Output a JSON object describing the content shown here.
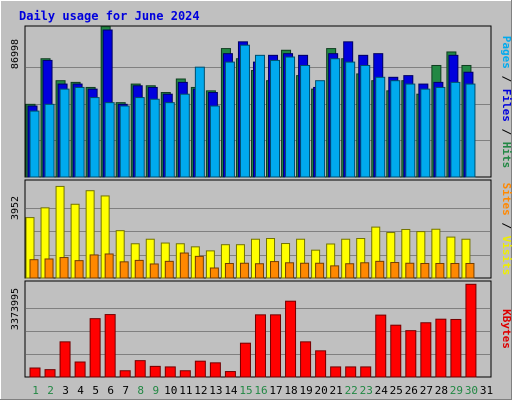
{
  "chart_data": {
    "type": "bar",
    "title": "Daily usage for June 2024",
    "categories": [
      "1",
      "2",
      "3",
      "4",
      "5",
      "6",
      "7",
      "8",
      "9",
      "10",
      "11",
      "12",
      "13",
      "14",
      "15",
      "16",
      "17",
      "18",
      "19",
      "20",
      "21",
      "22",
      "23",
      "24",
      "25",
      "26",
      "27",
      "28",
      "29",
      "30",
      "31"
    ],
    "weekend_days": [
      "1",
      "2",
      "8",
      "9",
      "15",
      "16",
      "22",
      "23",
      "29",
      "30"
    ],
    "panels": [
      {
        "name": "hits-files-pages",
        "ylabel_parts": [
          {
            "text": "Pages",
            "color": "#00aaee"
          },
          {
            "text": " / ",
            "color": "#000000"
          },
          {
            "text": "Files",
            "color": "#0000dd"
          },
          {
            "text": " / ",
            "color": "#000000"
          },
          {
            "text": "Hits",
            "color": "#228844"
          }
        ],
        "max_label": "86998",
        "ymax": 86998,
        "series": [
          {
            "name": "Hits",
            "color": "#228844",
            "values": [
              43000,
              70000,
              57000,
              56000,
              53000,
              89000,
              44000,
              55000,
              54000,
              50000,
              58000,
              53000,
              51000,
              76000,
              70000,
              63000,
              57000,
              75000,
              60000,
              52000,
              76000,
              70000,
              61000,
              57000,
              51000,
              57000,
              49000,
              66000,
              74000,
              66000,
              0
            ]
          },
          {
            "name": "Files",
            "color": "#0000dd",
            "values": [
              42000,
              69000,
              55000,
              55000,
              52000,
              87000,
              43000,
              54000,
              53000,
              49000,
              56000,
              52000,
              50000,
              73000,
              80000,
              68000,
              72000,
              73000,
              72000,
              53000,
              73000,
              80000,
              72000,
              73000,
              59000,
              60000,
              55000,
              56000,
              72000,
              62000,
              0
            ]
          },
          {
            "name": "Pages",
            "color": "#00aaee",
            "values": [
              39000,
              43000,
              52000,
              53000,
              47000,
              44000,
              42000,
              47000,
              46000,
              44000,
              49000,
              65000,
              42000,
              68000,
              78000,
              72000,
              69000,
              71000,
              66000,
              57000,
              70000,
              68000,
              66000,
              59000,
              57000,
              55000,
              52000,
              53000,
              56000,
              55000,
              0
            ]
          }
        ]
      },
      {
        "name": "visits-sites",
        "ylabel_parts": [
          {
            "text": "Sites",
            "color": "#ff8800"
          },
          {
            "text": " / ",
            "color": "#000000"
          },
          {
            "text": "Visits",
            "color": "#eeee00"
          }
        ],
        "max_label": "3952",
        "ymax": 3952,
        "series": [
          {
            "name": "Visits",
            "color": "#ffff00",
            "values": [
              2540,
              2950,
              3850,
              3100,
              3670,
              3450,
              1990,
              1440,
              1630,
              1470,
              1440,
              1310,
              1140,
              1400,
              1400,
              1630,
              1660,
              1450,
              1630,
              1170,
              1430,
              1630,
              1660,
              2140,
              1910,
              2040,
              1950,
              2050,
              1720,
              1630,
              0
            ]
          },
          {
            "name": "Sites",
            "color": "#ff8800",
            "values": [
              770,
              800,
              860,
              730,
              970,
              1010,
              680,
              740,
              590,
              700,
              1050,
              910,
              420,
              610,
              620,
              600,
              690,
              640,
              620,
              620,
              510,
              600,
              640,
              700,
              650,
              620,
              610,
              610,
              610,
              610,
              0
            ]
          }
        ]
      },
      {
        "name": "kbytes",
        "ylabel_parts": [
          {
            "text": "KBytes",
            "color": "#dd0000"
          }
        ],
        "max_label": "3373995",
        "ymax": 3373995,
        "series": [
          {
            "name": "KBytes",
            "color": "#ff0000",
            "values": [
              330000,
              270000,
              1290000,
              550000,
              2140000,
              2290000,
              230000,
              600000,
              390000,
              370000,
              230000,
              580000,
              520000,
              200000,
              1240000,
              2280000,
              2280000,
              2780000,
              1290000,
              960000,
              370000,
              370000,
              370000,
              2270000,
              1900000,
              1700000,
              1990000,
              2120000,
              2110000,
              3400000,
              0
            ]
          }
        ]
      }
    ]
  }
}
